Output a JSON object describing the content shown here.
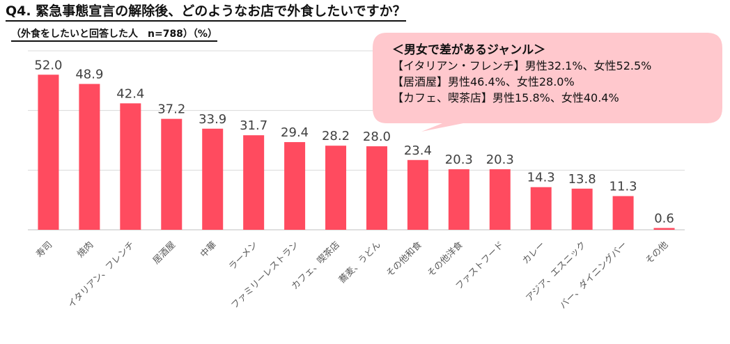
{
  "title": "Q4. 緊急事態宣言の解除後、どのようなお店で外食したいですか？",
  "subtitle": "（外食をしたいと回答した人　n=788）（%）",
  "callout": {
    "heading": "＜男女で差があるジャンル＞",
    "lines": [
      "【イタリアン・フレンチ】男性32.1%、女性52.5%",
      "【居酒屋】男性46.4%、女性28.0%",
      "【カフェ、喫茶店】男性15.8%、女性40.4%"
    ]
  },
  "colors": {
    "bar": "#ff4b5f",
    "callout_fill": "#ffc8cd",
    "grid": "#d9d9d9"
  },
  "chart_data": {
    "type": "bar",
    "categories": [
      "寿司",
      "焼肉",
      "イタリアン、フレンチ",
      "居酒屋",
      "中華",
      "ラーメン",
      "ファミリーレストラン",
      "カフェ、喫茶店",
      "蕎麦、うどん",
      "その他和食",
      "その他洋食",
      "ファストフード",
      "カレー",
      "アジア、エスニック",
      "バー、ダイニングバー",
      "その他"
    ],
    "values": [
      52.0,
      48.9,
      42.4,
      37.2,
      33.9,
      31.7,
      29.4,
      28.2,
      28.0,
      23.4,
      20.3,
      20.3,
      14.3,
      13.8,
      11.3,
      0.6
    ],
    "value_labels": [
      "52.0",
      "48.9",
      "42.4",
      "37.2",
      "33.9",
      "31.7",
      "29.4",
      "28.2",
      "28.0",
      "23.4",
      "20.3",
      "20.3",
      "14.3",
      "13.8",
      "11.3",
      "0.6"
    ],
    "ylim": [
      0,
      60
    ],
    "grid": true,
    "xlabel": "",
    "ylabel": ""
  }
}
